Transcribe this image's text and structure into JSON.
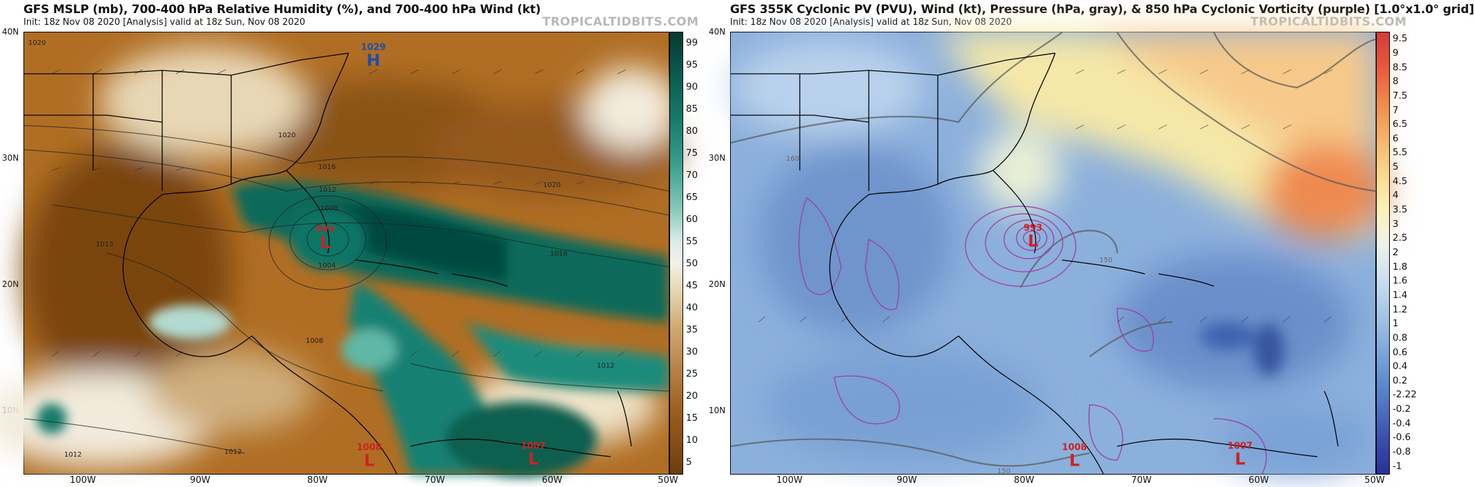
{
  "left": {
    "title": "GFS MSLP (mb), 700-400 hPa Relative Humidity (%), and 700-400 hPa Wind (kt)",
    "init_line": "Init: 18z Nov 08 2020   [Analysis]   valid at 18z Sun, Nov 08 2020",
    "brand": "TROPICALTIDBITS.COM",
    "colorbar": [
      "99",
      "95",
      "90",
      "85",
      "80",
      "75",
      "70",
      "65",
      "60",
      "55",
      "50",
      "45",
      "40",
      "35",
      "30",
      "25",
      "20",
      "15",
      "10",
      "5"
    ],
    "systems": [
      {
        "type": "H",
        "pressure": "1029",
        "color": "#1f4fa8"
      },
      {
        "type": "L",
        "pressure": "993",
        "color": "#cc2222"
      },
      {
        "type": "L",
        "pressure": "1008",
        "color": "#cc2222"
      },
      {
        "type": "L",
        "pressure": "1007",
        "color": "#cc2222"
      }
    ],
    "isobar_labels": [
      "1020",
      "1020",
      "1016",
      "1012",
      "1008",
      "1004",
      "1016",
      "1020",
      "1013",
      "1008",
      "1012",
      "1012",
      "1012"
    ]
  },
  "right": {
    "title": "GFS 355K Cyclonic PV (PVU), Wind (kt), Pressure (hPa, gray), & 850 hPa Cyclonic Vorticity (purple) [1.0°x1.0° grid]",
    "init_line": "Init: 18z Nov 08 2020   [Analysis]   valid at 18z Sun, Nov 08 2020",
    "brand": "TROPICALTIDBITS.COM",
    "colorbar": [
      "9.5",
      "9",
      "8.5",
      "8",
      "7.5",
      "7",
      "6.5",
      "6",
      "5.5",
      "5",
      "4.5",
      "4",
      "3.5",
      "3",
      "2.5",
      "2",
      "1.8",
      "1.6",
      "1.4",
      "1.2",
      "1",
      "0.8",
      "0.6",
      "0.4",
      "0.2",
      "-2.22",
      "-0.2",
      "-0.4",
      "-0.6",
      "-0.8",
      "-1"
    ],
    "systems": [
      {
        "type": "L",
        "pressure": "993",
        "color": "#cc2222"
      },
      {
        "type": "L",
        "pressure": "1008",
        "color": "#cc2222"
      },
      {
        "type": "L",
        "pressure": "1007",
        "color": "#cc2222"
      }
    ],
    "contour_labels": [
      "160",
      "150",
      "150"
    ]
  },
  "lat_labels": [
    "40N",
    "30N",
    "20N",
    "10N"
  ],
  "lon_labels": [
    "100W",
    "90W",
    "80W",
    "70W",
    "60W",
    "50W"
  ],
  "colors": {
    "dry": "#8a5212",
    "moist": "#0a6b5a",
    "pv_low": "#5d85c4",
    "pv_high": "#e85a3a",
    "vort": "#9b3fa8"
  }
}
